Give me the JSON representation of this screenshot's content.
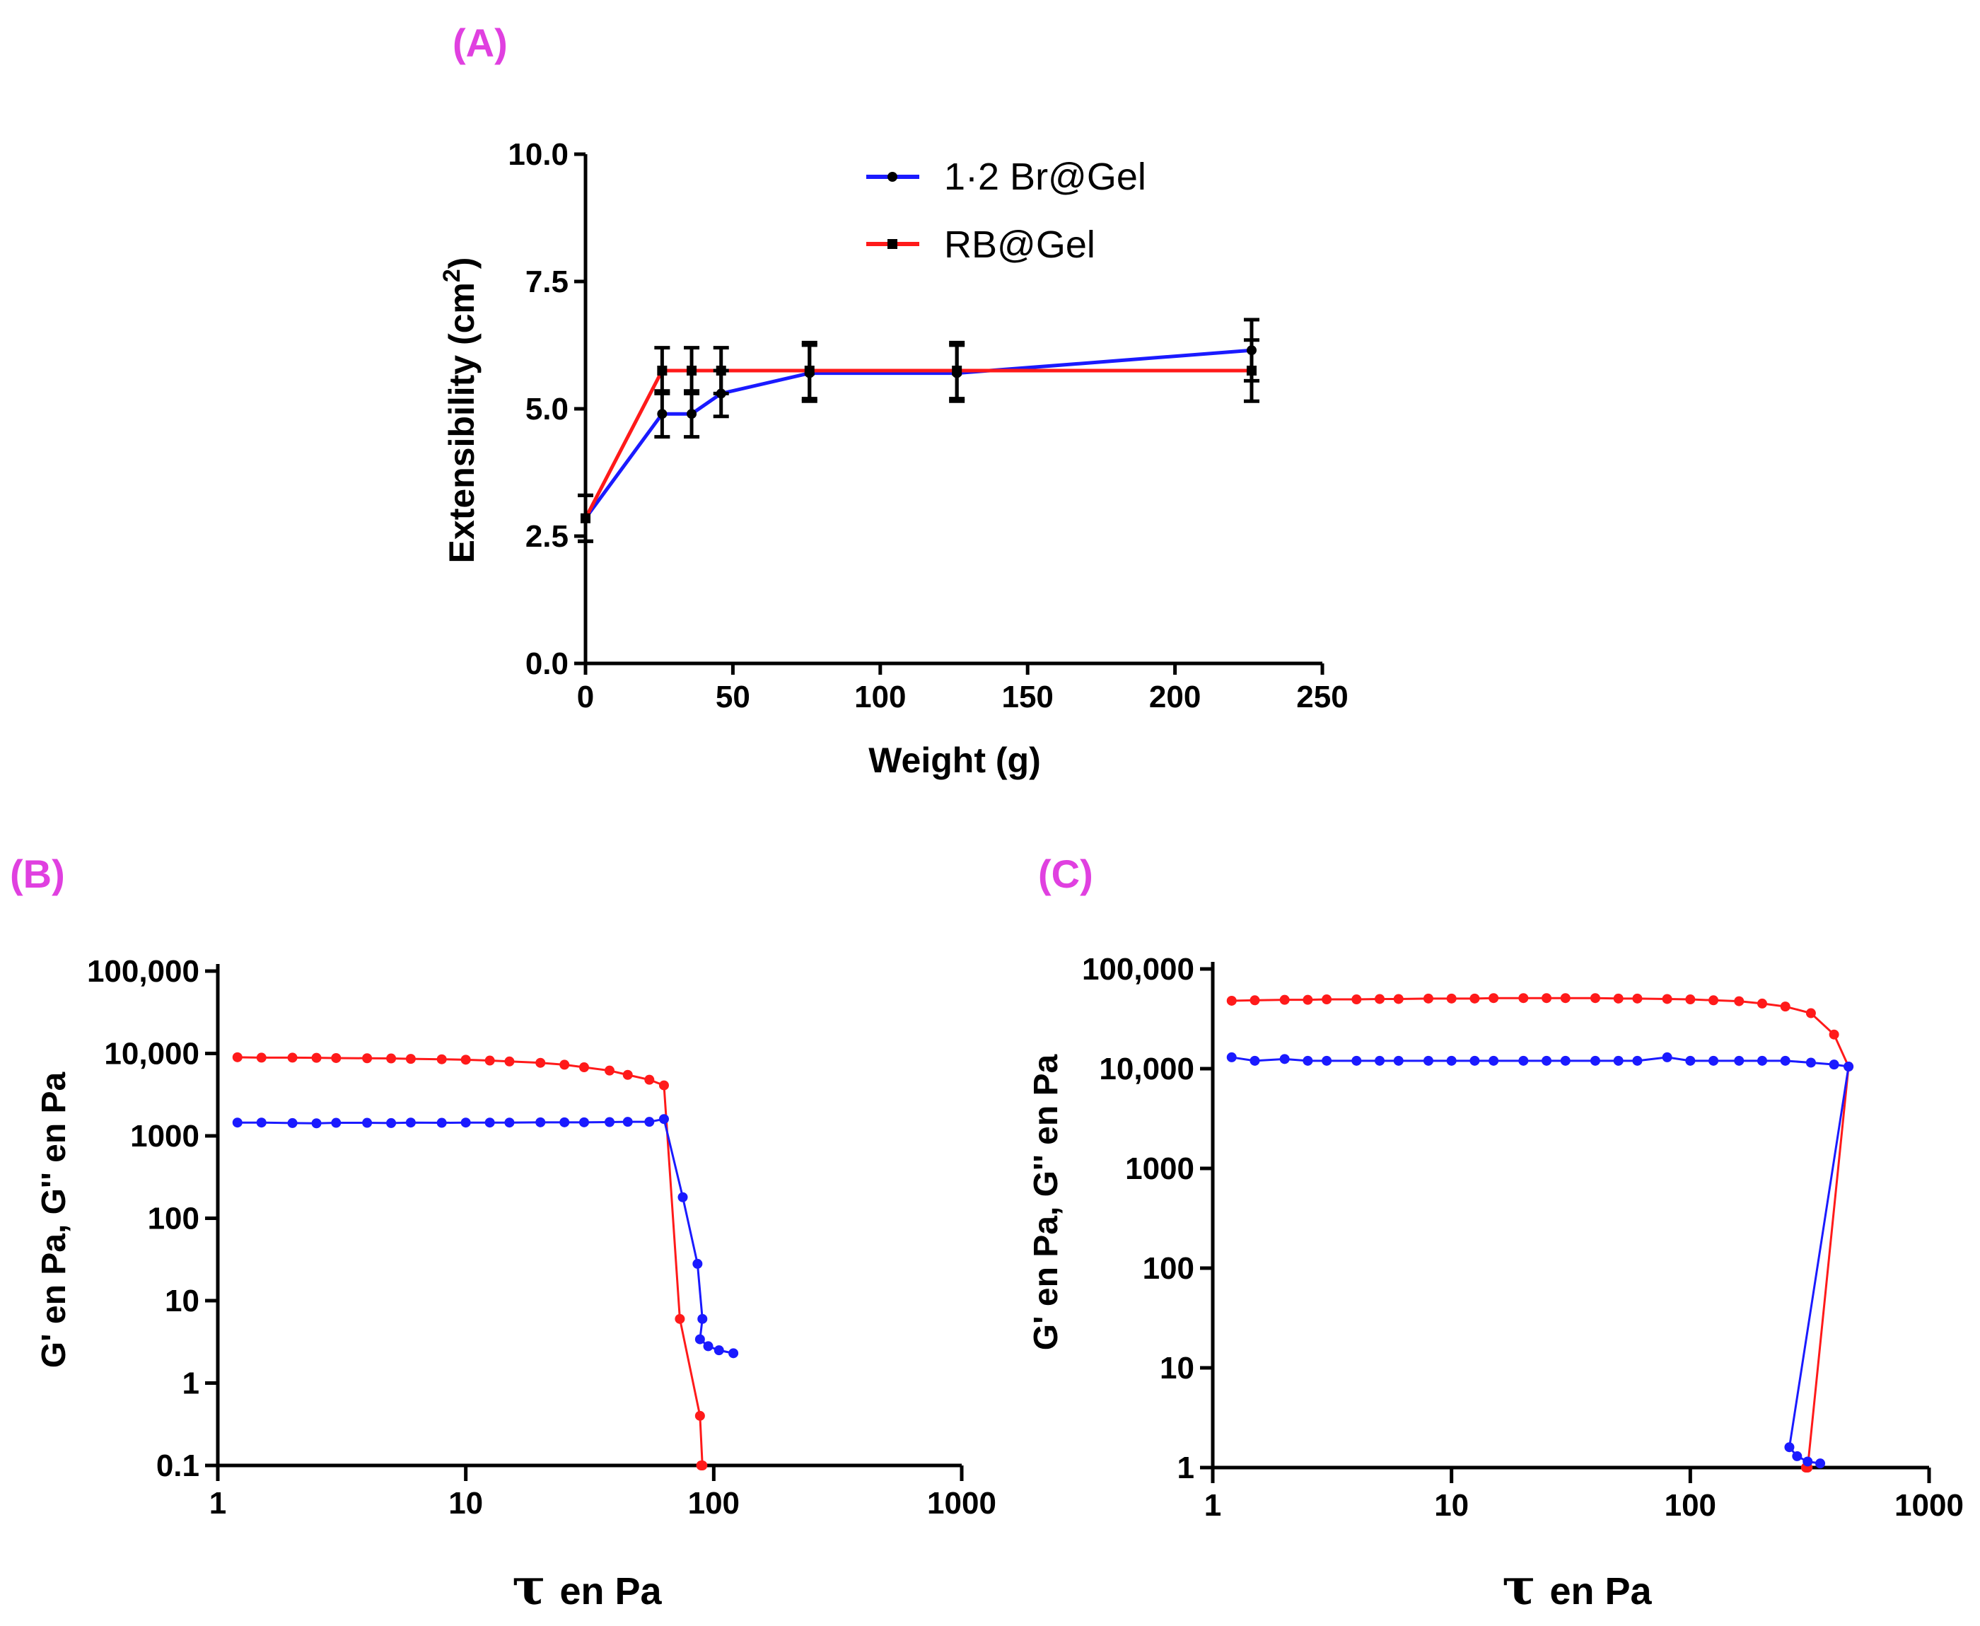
{
  "colors": {
    "panel_tag": "#e040e0",
    "series_blue": "#1a1aff",
    "series_red": "#ff1a1a",
    "axis": "#000000",
    "error_bar": "#000000"
  },
  "chart_data": [
    {
      "panel": "(A)",
      "type": "line",
      "xlabel": "Weight (g)",
      "ylabel_main": "Extensibility (cm",
      "ylabel_sup": "2",
      "ylabel_tail": ")",
      "xlim": [
        0,
        250
      ],
      "ylim": [
        0,
        10
      ],
      "x_ticks": [
        0,
        50,
        100,
        150,
        200,
        250
      ],
      "x_tick_labels": [
        "0",
        "50",
        "100",
        "150",
        "200",
        "250"
      ],
      "y_ticks": [
        0,
        2.5,
        5,
        7.5,
        10
      ],
      "y_tick_labels": [
        "0.0",
        "2.5",
        "5.0",
        "7.5",
        "10.0"
      ],
      "legend_position": "top-right",
      "series": [
        {
          "name": "1·2 Br@Gel",
          "color_key": "series_blue",
          "marker": "circle",
          "x": [
            0,
            26,
            36,
            46,
            76,
            126,
            226
          ],
          "y": [
            2.85,
            4.9,
            4.9,
            5.3,
            5.7,
            5.7,
            6.15
          ],
          "err": [
            0.45,
            0.45,
            0.45,
            0.45,
            0.55,
            0.55,
            0.6
          ]
        },
        {
          "name": "RB@Gel",
          "color_key": "series_red",
          "marker": "square",
          "x": [
            0,
            26,
            36,
            46,
            76,
            126,
            226
          ],
          "y": [
            2.85,
            5.75,
            5.75,
            5.75,
            5.75,
            5.75,
            5.75
          ],
          "err": [
            0.45,
            0.45,
            0.45,
            0.45,
            0.55,
            0.55,
            0.6
          ]
        }
      ]
    },
    {
      "panel": "(B)",
      "type": "line",
      "xscale": "log",
      "yscale": "log",
      "xlabel_tau": "τ",
      "xlabel_rest": "en Pa",
      "ylabel": "G' en Pa, G'' en Pa",
      "xlim": [
        1,
        1000
      ],
      "ylim": [
        0.1,
        100000
      ],
      "x_ticks": [
        1,
        10,
        100,
        1000
      ],
      "x_tick_labels": [
        "1",
        "10",
        "100",
        "1000"
      ],
      "y_ticks": [
        0.1,
        1,
        10,
        100,
        1000,
        10000,
        100000
      ],
      "y_tick_labels": [
        "0.1",
        "1",
        "10",
        "100",
        "1000",
        "10,000",
        "100,000"
      ],
      "series": [
        {
          "color_key": "series_red",
          "x": [
            1.2,
            1.5,
            2,
            2.5,
            3,
            4,
            5,
            6,
            8,
            10,
            12.5,
            15,
            20,
            25,
            30,
            38,
            45,
            55,
            63,
            73,
            88,
            90,
            89
          ],
          "y": [
            9000,
            8900,
            8900,
            8850,
            8800,
            8750,
            8700,
            8600,
            8500,
            8400,
            8200,
            8000,
            7700,
            7300,
            6800,
            6200,
            5500,
            4800,
            4100,
            6,
            0.4,
            0.1,
            0.1
          ]
        },
        {
          "color_key": "series_blue",
          "x": [
            1.2,
            1.5,
            2,
            2.5,
            3,
            4,
            5,
            6,
            8,
            10,
            12.5,
            15,
            20,
            25,
            30,
            38,
            45,
            55,
            63,
            75,
            86,
            90,
            88,
            95,
            105,
            120
          ],
          "y": [
            1450,
            1450,
            1430,
            1420,
            1440,
            1440,
            1430,
            1450,
            1440,
            1450,
            1450,
            1450,
            1460,
            1460,
            1460,
            1470,
            1480,
            1480,
            1600,
            180,
            28,
            6,
            3.4,
            2.8,
            2.5,
            2.3
          ]
        }
      ]
    },
    {
      "panel": "(C)",
      "type": "line",
      "xscale": "log",
      "yscale": "log",
      "xlabel_tau": "τ",
      "xlabel_rest": "en Pa",
      "ylabel": "G' en Pa, G'' en Pa",
      "xlim": [
        1,
        1000
      ],
      "ylim": [
        1,
        100000
      ],
      "x_ticks": [
        1,
        10,
        100,
        1000
      ],
      "x_tick_labels": [
        "1",
        "10",
        "100",
        "1000"
      ],
      "y_ticks": [
        1,
        10,
        100,
        1000,
        10000,
        100000
      ],
      "y_tick_labels": [
        "1",
        "10",
        "100",
        "1000",
        "10,000",
        "100,000"
      ],
      "series": [
        {
          "color_key": "series_red",
          "x": [
            1.2,
            1.5,
            2,
            2.5,
            3,
            4,
            5,
            6,
            8,
            10,
            12.5,
            15,
            20,
            25,
            30,
            40,
            50,
            60,
            80,
            100,
            125,
            160,
            200,
            250,
            320,
            400,
            460,
            310,
            305
          ],
          "y": [
            48000,
            48500,
            49000,
            49000,
            49500,
            49500,
            50000,
            50000,
            50500,
            50500,
            50500,
            51000,
            51000,
            51000,
            51000,
            51000,
            50500,
            50500,
            50000,
            49500,
            48500,
            47500,
            45000,
            42000,
            36000,
            22000,
            10500,
            1,
            1
          ]
        },
        {
          "color_key": "series_blue",
          "x": [
            1.2,
            1.5,
            2,
            2.5,
            3,
            4,
            5,
            6,
            8,
            10,
            12.5,
            15,
            20,
            25,
            30,
            40,
            50,
            60,
            80,
            100,
            125,
            160,
            200,
            250,
            320,
            400,
            460,
            260,
            280,
            310,
            350
          ],
          "y": [
            13000,
            12000,
            12500,
            12000,
            12000,
            12000,
            12000,
            12000,
            12000,
            12000,
            12000,
            12000,
            12000,
            12000,
            12000,
            12000,
            12000,
            12000,
            13000,
            12000,
            12000,
            12000,
            12000,
            12000,
            11500,
            11000,
            10500,
            1.6,
            1.3,
            1.15,
            1.1
          ]
        }
      ]
    }
  ]
}
